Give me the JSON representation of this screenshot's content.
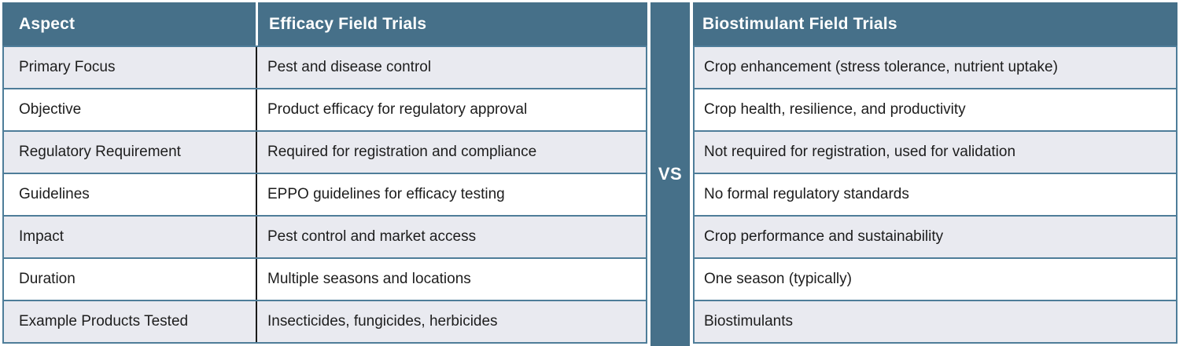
{
  "colors": {
    "header_bg": "#467089",
    "vs_band_bg": "#467089",
    "row_stripe_bg": "#e9eaf0",
    "row_bg": "#ffffff",
    "grid_border": "#4e7d99",
    "column_divider": "#1a1a1a",
    "header_text": "#ffffff",
    "body_text": "#1d1d1d"
  },
  "chart_data": {
    "type": "table",
    "columns": [
      "Aspect",
      "Efficacy Field Trials",
      "Biostimulant Field Trials"
    ],
    "divider_label": "VS",
    "rows": [
      {
        "aspect": "Primary Focus",
        "efficacy": "Pest and disease control",
        "biostimulant": "Crop enhancement (stress tolerance, nutrient uptake)"
      },
      {
        "aspect": "Objective",
        "efficacy": "Product efficacy for regulatory approval",
        "biostimulant": "Crop health, resilience, and productivity"
      },
      {
        "aspect": "Regulatory Requirement",
        "efficacy": "Required for registration and compliance",
        "biostimulant": "Not required for registration, used for validation"
      },
      {
        "aspect": "Guidelines",
        "efficacy": "EPPO guidelines for efficacy testing",
        "biostimulant": "No formal regulatory standards"
      },
      {
        "aspect": "Impact",
        "efficacy": "Pest control and market access",
        "biostimulant": "Crop performance and sustainability"
      },
      {
        "aspect": "Duration",
        "efficacy": "Multiple seasons and locations",
        "biostimulant": "One season (typically)"
      },
      {
        "aspect": "Example Products Tested",
        "efficacy": "Insecticides, fungicides, herbicides",
        "biostimulant": "Biostimulants"
      }
    ]
  }
}
